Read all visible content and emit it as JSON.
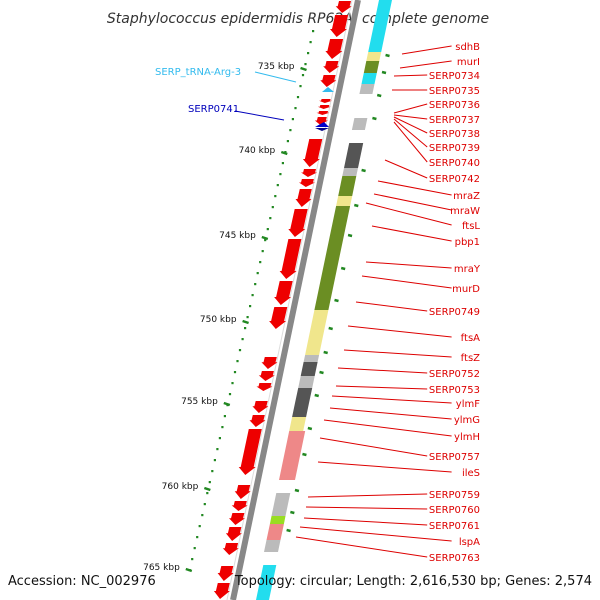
{
  "title": "Staphylococcus epidermidis RP62A, complete genome",
  "footer": {
    "accession": "Accession: NC_002976",
    "topology": "Topology: circular; Length: 2,616,530 bp; Genes: 2,574"
  },
  "colors": {
    "gene_arrow": "#ee0000",
    "backbone": "#888888",
    "tick_green": "#228822",
    "label_red": "#dd0000",
    "trna": "#33bbee",
    "trna_dark": "#0000bb",
    "cyan": "#22ddee",
    "olive": "#6b8e23",
    "khaki": "#f0e68c",
    "dark_gray": "#555555",
    "light_gray": "#bbbbbb",
    "pink": "#ee8888",
    "light_green": "#99dd22"
  },
  "scale": {
    "unit": "kbp",
    "ticks": [
      {
        "label": "735 kbp",
        "kbp": 735
      },
      {
        "label": "740 kbp",
        "kbp": 740
      },
      {
        "label": "745 kbp",
        "kbp": 745
      },
      {
        "label": "750 kbp",
        "kbp": 750
      },
      {
        "label": "755 kbp",
        "kbp": 755
      },
      {
        "label": "760 kbp",
        "kbp": 760
      },
      {
        "label": "765 kbp",
        "kbp": 765
      }
    ]
  },
  "left_labels": [
    {
      "text": "SERP_tRNA-Arg-3",
      "color": "#33bbee"
    },
    {
      "text": "SERP0741",
      "color": "#0000bb"
    }
  ],
  "gene_labels": [
    "sdhB",
    "murI",
    "SERP0734",
    "SERP0735",
    "SERP0736",
    "SERP0737",
    "SERP0738",
    "SERP0739",
    "SERP0740",
    "SERP0742",
    "mraZ",
    "mraW",
    "ftsL",
    "pbp1",
    "mraY",
    "murD",
    "SERP0749",
    "ftsA",
    "ftsZ",
    "SERP0752",
    "SERP0753",
    "ylmF",
    "ylmG",
    "ylmH",
    "SERP0757",
    "ileS",
    "SERP0759",
    "SERP0760",
    "SERP0761",
    "lspA",
    "SERP0763"
  ]
}
